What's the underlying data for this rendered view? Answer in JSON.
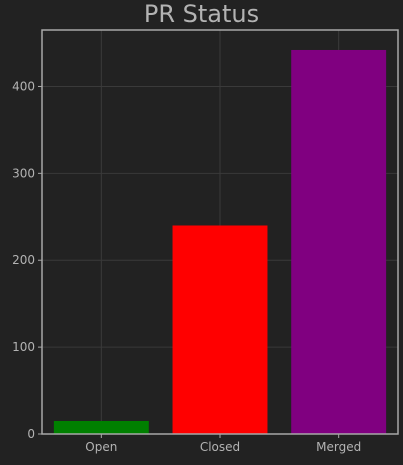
{
  "chart_data": {
    "type": "bar",
    "title": "PR Status",
    "xlabel": "",
    "ylabel": "",
    "categories": [
      "Open",
      "Closed",
      "Merged"
    ],
    "values": [
      15,
      240,
      442
    ],
    "colors": [
      "#008000",
      "#ff0000",
      "#800080"
    ],
    "ylim": [
      0,
      465
    ],
    "yticks": [
      0,
      100,
      200,
      300,
      400
    ],
    "grid": true,
    "legend": "none",
    "background": "#222222",
    "axes_color": "#a8a8a8",
    "grid_color": "#3a3a3a",
    "text_color": "#b3b3b3"
  }
}
